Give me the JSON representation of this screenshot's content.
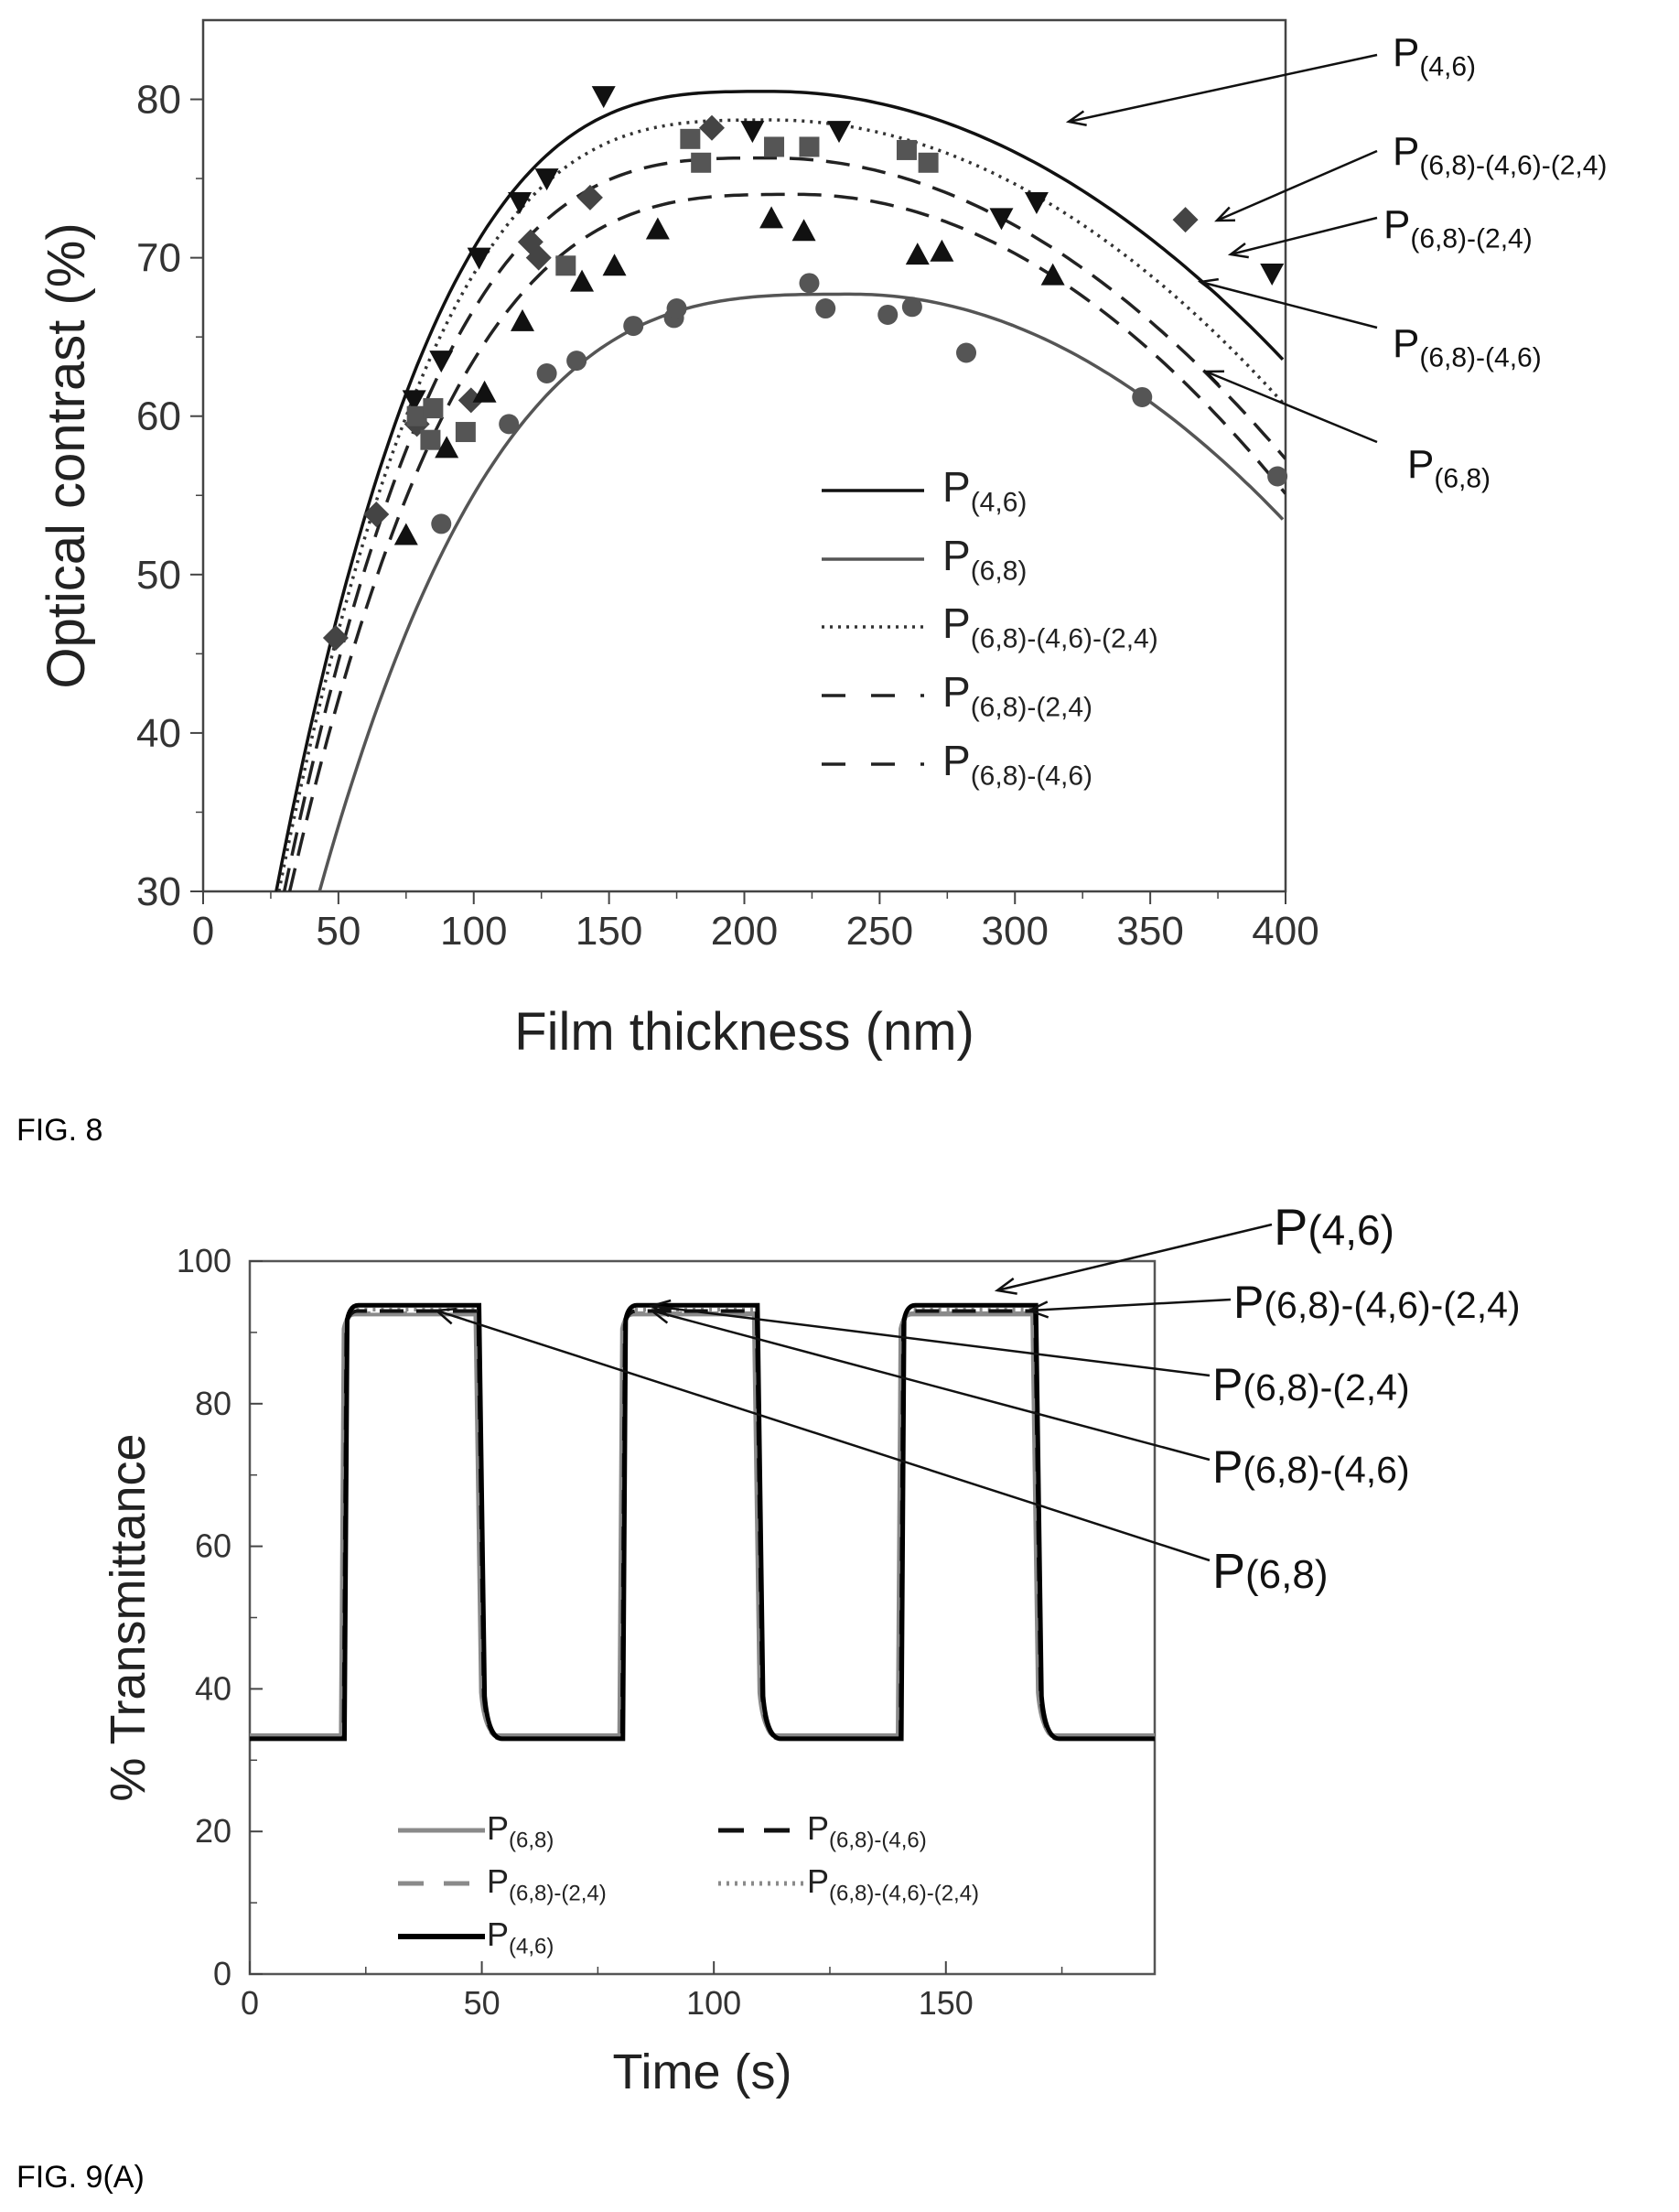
{
  "figures": {
    "fig8_caption": "FIG. 8",
    "fig9a_caption": "FIG. 9(A)"
  },
  "chart_data": [
    {
      "type": "scatter",
      "figure": "FIG. 8",
      "title": "",
      "xlabel": "Film thickness (nm)",
      "ylabel": "Optical contrast (%)",
      "xlim": [
        0,
        400
      ],
      "ylim": [
        30,
        85
      ],
      "xticks": [
        0,
        50,
        100,
        150,
        200,
        250,
        300,
        350,
        400
      ],
      "yticks": [
        30,
        40,
        50,
        60,
        70,
        80
      ],
      "grid": false,
      "legend_position": "lower-right",
      "series": [
        {
          "name": "P(4,6)",
          "main": "P",
          "sub": "(4,6)",
          "style": "solid",
          "color": "#111111",
          "fit": {
            "peak_x": 210,
            "peak_y": 80.5,
            "x0": 27,
            "k": 0.18
          },
          "marker": "triangle-down",
          "points": [
            [
              78,
              61
            ],
            [
              88,
              63.5
            ],
            [
              102,
              70
            ],
            [
              117,
              73.5
            ],
            [
              127,
              75
            ],
            [
              148,
              80.2
            ],
            [
              203,
              78
            ],
            [
              235,
              78
            ],
            [
              295,
              72.5
            ],
            [
              308,
              73.5
            ],
            [
              395,
              69
            ]
          ]
        },
        {
          "name": "P(6,8)",
          "main": "P",
          "sub": "(6,8)",
          "style": "solid",
          "color": "#555555",
          "fit": {
            "peak_x": 240,
            "peak_y": 67.7,
            "x0": 43,
            "k": 0.18
          },
          "marker": "circle",
          "points": [
            [
              88,
              53.2
            ],
            [
              113,
              59.5
            ],
            [
              127,
              62.7
            ],
            [
              138,
              63.5
            ],
            [
              159,
              65.7
            ],
            [
              174,
              66.2
            ],
            [
              175,
              66.8
            ],
            [
              224,
              68.4
            ],
            [
              230,
              66.8
            ],
            [
              253,
              66.4
            ],
            [
              262,
              66.9
            ],
            [
              282,
              64
            ],
            [
              347,
              61.2
            ],
            [
              397,
              56.2
            ]
          ]
        },
        {
          "name": "P(6,8)-(4,6)-(2,4)",
          "main": "P",
          "sub": "(6,8)-(4,6)-(2,4)",
          "style": "dotted",
          "color": "#333333",
          "fit": {
            "peak_x": 210,
            "peak_y": 78.7,
            "x0": 28,
            "k": 0.19
          },
          "marker": "diamond",
          "points": [
            [
              49,
              46
            ],
            [
              64,
              53.8
            ],
            [
              79,
              59.5
            ],
            [
              99,
              61
            ],
            [
              121,
              71
            ],
            [
              124,
              70
            ],
            [
              143,
              73.8
            ],
            [
              188,
              78.2
            ],
            [
              363,
              72.4
            ]
          ]
        },
        {
          "name": "P(6,8)-(2,4)",
          "main": "P",
          "sub": "(6,8)-(2,4)",
          "style": "dashed",
          "color": "#222222",
          "fit": {
            "peak_x": 210,
            "peak_y": 76.3,
            "x0": 30,
            "k": 0.2
          },
          "marker": "square",
          "points": [
            [
              79,
              60
            ],
            [
              84,
              58.5
            ],
            [
              85,
              60.5
            ],
            [
              97,
              59
            ],
            [
              134,
              69.5
            ],
            [
              180,
              77.5
            ],
            [
              184,
              76
            ],
            [
              211,
              77
            ],
            [
              224,
              77
            ],
            [
              260,
              76.8
            ],
            [
              268,
              76
            ]
          ]
        },
        {
          "name": "P(6,8)-(4,6)",
          "main": "P",
          "sub": "(6,8)-(4,6)",
          "style": "dashed",
          "color": "#222222",
          "fit": {
            "peak_x": 220,
            "peak_y": 74,
            "x0": 32,
            "k": 0.21
          },
          "marker": "triangle-up",
          "points": [
            [
              75,
              52.5
            ],
            [
              90,
              58
            ],
            [
              104,
              61.5
            ],
            [
              118,
              66
            ],
            [
              140,
              68.5
            ],
            [
              152,
              69.5
            ],
            [
              168,
              71.8
            ],
            [
              210,
              72.5
            ],
            [
              222,
              71.7
            ],
            [
              264,
              70.2
            ],
            [
              273,
              70.4
            ],
            [
              314,
              68.9
            ]
          ]
        }
      ],
      "callouts": [
        "P(4,6)",
        "P(6,8)-(4,6)-(2,4)",
        "P(6,8)-(2,4)",
        "P(6,8)-(4,6)",
        "P(6,8)"
      ]
    },
    {
      "type": "line",
      "figure": "FIG. 9(A)",
      "title": "",
      "xlabel": "Time (s)",
      "ylabel": "% Transmittance",
      "xlim": [
        0,
        195
      ],
      "ylim": [
        0,
        100
      ],
      "xticks": [
        0,
        50,
        100,
        150
      ],
      "yticks": [
        0,
        20,
        40,
        60,
        80,
        100
      ],
      "grid": false,
      "legend_position": "lower-left",
      "square_wave": {
        "low": 33,
        "high": 93.5,
        "rise_times": [
          20,
          80,
          140
        ],
        "fall_times": [
          49,
          109,
          169
        ]
      },
      "series": [
        {
          "name": "P(6,8)",
          "main": "P",
          "sub": "(6,8)",
          "style": "solid",
          "color": "#8a8a8a",
          "high": 92.5,
          "low": 33.5
        },
        {
          "name": "P(6,8)-(4,6)",
          "main": "P",
          "sub": "(6,8)-(4,6)",
          "style": "dashed",
          "color": "#111111",
          "high": 93,
          "low": 33
        },
        {
          "name": "P(6,8)-(2,4)",
          "main": "P",
          "sub": "(6,8)-(2,4)",
          "style": "dashed",
          "color": "#8a8a8a",
          "high": 92.7,
          "low": 33.2
        },
        {
          "name": "P(6,8)-(4,6)-(2,4)",
          "main": "P",
          "sub": "(6,8)-(4,6)-(2,4)",
          "style": "dotted",
          "color": "#8a8a8a",
          "high": 93.2,
          "low": 33
        },
        {
          "name": "P(4,6)",
          "main": "P",
          "sub": "(4,6)",
          "style": "solid",
          "color": "#000000",
          "high": 93.8,
          "low": 33
        }
      ],
      "callouts": [
        "P(4,6)",
        "P(6,8)-(4,6)-(2,4)",
        "P(6,8)-(2,4)",
        "P(6,8)-(4,6)",
        "P(6,8)"
      ]
    }
  ]
}
